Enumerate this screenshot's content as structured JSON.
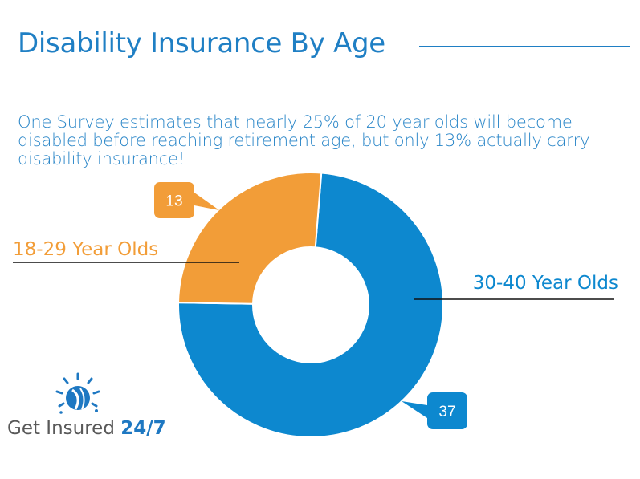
{
  "header": {
    "title": "Disability Insurance By Age",
    "subtitle": "One Survey estimates that nearly 25% of 20 year olds will become disabled before reaching retirement age, but only 13% actually carry disability insurance!"
  },
  "chart_data": {
    "type": "pie",
    "variant": "doughnut",
    "title": "",
    "categories": [
      "18-29 Year Olds",
      "30-40 Year Olds"
    ],
    "values": [
      13,
      37
    ],
    "colors": [
      "#f29d38",
      "#0d88cf"
    ],
    "data_labels": [
      "13",
      "37"
    ],
    "legend": "callout-labels"
  },
  "logo": {
    "icon": "sun-globe-icon",
    "text_main": "Get Insured",
    "text_num": "24/7"
  }
}
